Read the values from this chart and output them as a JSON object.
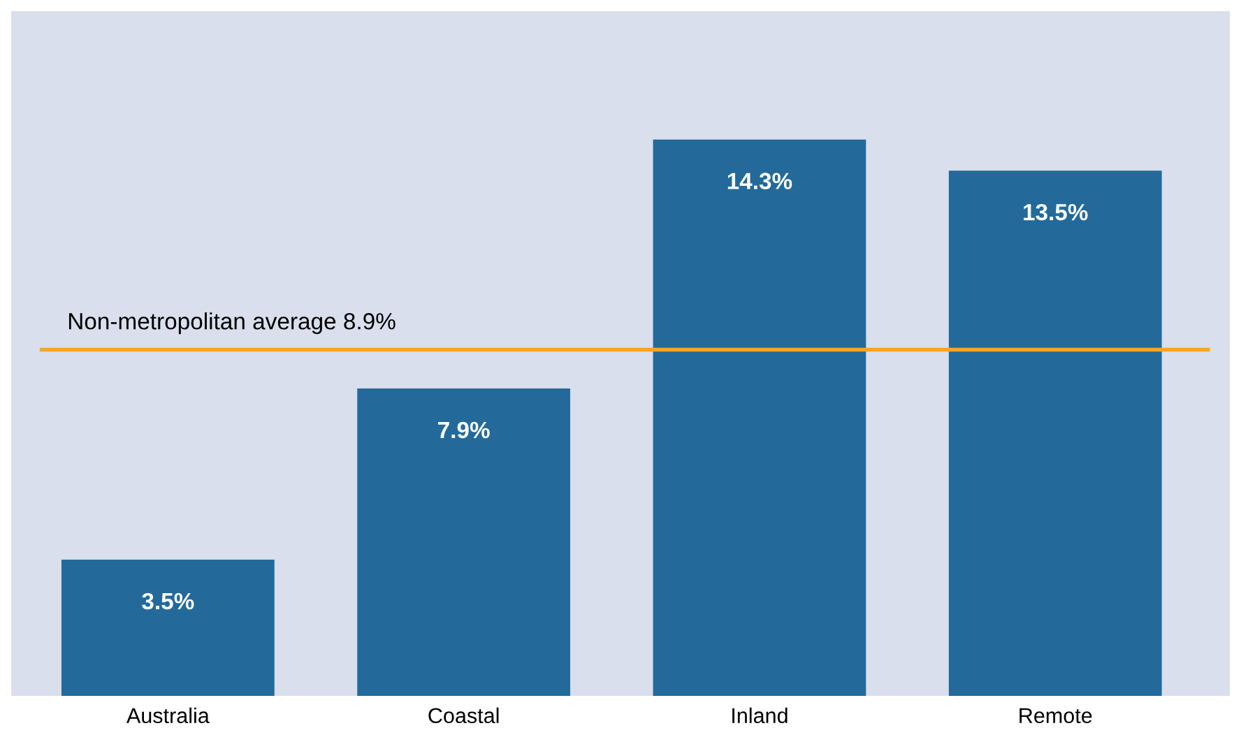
{
  "chart_data": {
    "type": "bar",
    "categories": [
      "Australia",
      "Coastal",
      "Inland",
      "Remote"
    ],
    "values": [
      3.5,
      7.9,
      14.3,
      13.5
    ],
    "value_labels": [
      "3.5%",
      "7.9%",
      "14.3%",
      "13.5%"
    ],
    "color": "#236a9b",
    "ylim": [
      0,
      17.6
    ],
    "tick_labels": "x",
    "grid": false,
    "legend": false,
    "ref_lines": [
      {
        "axis": "y",
        "value": 8.9,
        "label": "Non-metropolitan average 8.9%",
        "color": "#f5a623",
        "line_style": "solid"
      }
    ]
  }
}
